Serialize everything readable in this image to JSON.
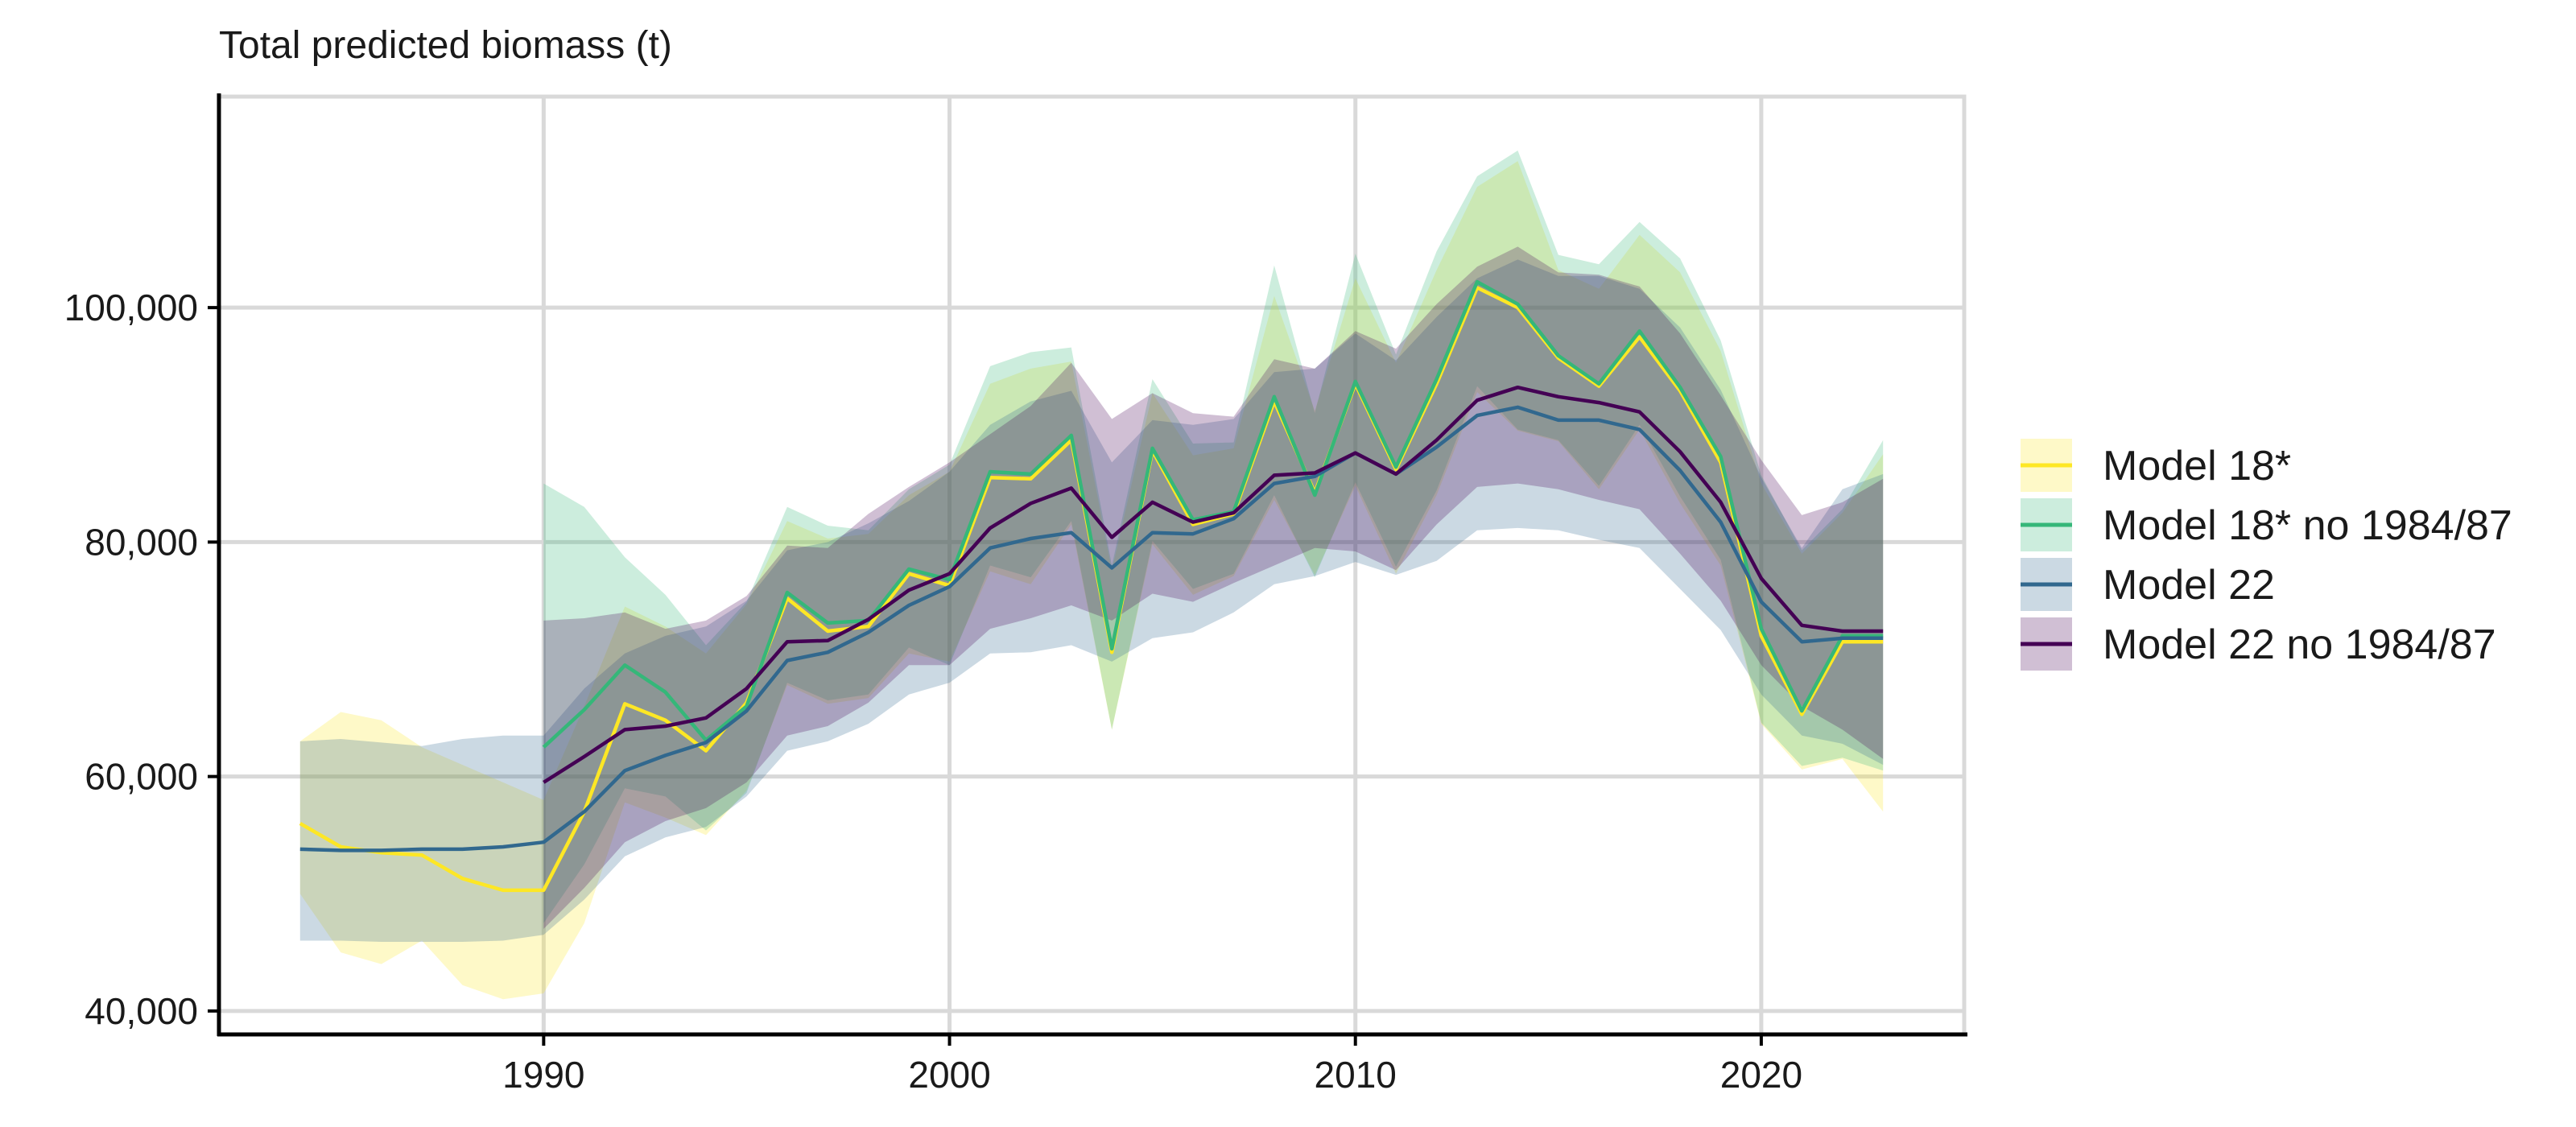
{
  "chart_data": {
    "type": "line",
    "title": "",
    "ylabel": "Total predicted biomass (t)",
    "xlabel": "",
    "xlim": [
      1982,
      2025
    ],
    "ylim": [
      38000,
      118000
    ],
    "x_ticks": [
      1990,
      2000,
      2010,
      2020
    ],
    "x_tick_labels": [
      "1990",
      "2000",
      "2010",
      "2020"
    ],
    "y_ticks": [
      40000,
      60000,
      80000,
      100000
    ],
    "y_tick_labels": [
      "40,000",
      "60,000",
      "80,000",
      "100,000"
    ],
    "grid": true,
    "legend_position": "right",
    "series": [
      {
        "name": "Model 18*",
        "color": "#fde725",
        "x": [
          1984,
          1985,
          1986,
          1987,
          1988,
          1989,
          1990,
          1991,
          1992,
          1993,
          1994,
          1995,
          1996,
          1997,
          1998,
          1999,
          2000,
          2001,
          2002,
          2003,
          2004,
          2005,
          2006,
          2007,
          2008,
          2009,
          2010,
          2011,
          2012,
          2013,
          2014,
          2015,
          2016,
          2017,
          2018,
          2019,
          2020,
          2021,
          2022,
          2023
        ],
        "values": [
          56000,
          54000,
          53500,
          53300,
          51300,
          50300,
          50300,
          57000,
          66200,
          64800,
          62200,
          66300,
          75200,
          72400,
          72800,
          77300,
          76300,
          85500,
          85400,
          88700,
          70600,
          87800,
          81500,
          82400,
          92000,
          84200,
          93500,
          86200,
          93500,
          101700,
          100000,
          95700,
          93300,
          97500,
          92900,
          86800,
          72000,
          65300,
          71500,
          71500
        ]
      },
      {
        "name": "Model 18* no 1984/87",
        "color": "#35b779",
        "x": [
          1990,
          1991,
          1992,
          1993,
          1994,
          1995,
          1996,
          1997,
          1998,
          1999,
          2000,
          2001,
          2002,
          2003,
          2004,
          2005,
          2006,
          2007,
          2008,
          2009,
          2010,
          2011,
          2012,
          2013,
          2014,
          2015,
          2016,
          2017,
          2018,
          2019,
          2020,
          2021,
          2022,
          2023
        ],
        "values": [
          62500,
          65700,
          69500,
          67200,
          63100,
          66000,
          75700,
          73100,
          73300,
          77700,
          76800,
          86000,
          85800,
          89100,
          70900,
          88000,
          81900,
          82600,
          92400,
          84000,
          93700,
          86400,
          93900,
          102200,
          100300,
          95900,
          93500,
          98000,
          93200,
          87300,
          72600,
          65600,
          72000,
          72000
        ]
      },
      {
        "name": "Model 22",
        "color": "#31688e",
        "x": [
          1984,
          1985,
          1986,
          1987,
          1988,
          1989,
          1990,
          1991,
          1992,
          1993,
          1994,
          1995,
          1996,
          1997,
          1998,
          1999,
          2000,
          2001,
          2002,
          2003,
          2004,
          2005,
          2006,
          2007,
          2008,
          2009,
          2010,
          2011,
          2012,
          2013,
          2014,
          2015,
          2016,
          2017,
          2018,
          2019,
          2020,
          2021,
          2022,
          2023
        ],
        "values": [
          53800,
          53700,
          53700,
          53800,
          53800,
          54000,
          54400,
          57000,
          60500,
          61800,
          62900,
          65600,
          69900,
          70600,
          72300,
          74600,
          76200,
          79500,
          80300,
          80800,
          77800,
          80800,
          80700,
          82000,
          85000,
          85600,
          87600,
          85800,
          88100,
          90800,
          91500,
          90400,
          90400,
          89600,
          86100,
          81700,
          74900,
          71500,
          71800,
          71800
        ]
      },
      {
        "name": "Model 22 no 1984/87",
        "color": "#440154",
        "x": [
          1990,
          1991,
          1992,
          1993,
          1994,
          1995,
          1996,
          1997,
          1998,
          1999,
          2000,
          2001,
          2002,
          2003,
          2004,
          2005,
          2006,
          2007,
          2008,
          2009,
          2010,
          2011,
          2012,
          2013,
          2014,
          2015,
          2016,
          2017,
          2018,
          2019,
          2020,
          2021,
          2022,
          2023
        ],
        "values": [
          59500,
          61700,
          64000,
          64300,
          65000,
          67500,
          71500,
          71600,
          73400,
          75900,
          77300,
          81200,
          83300,
          84600,
          80400,
          83400,
          81700,
          82500,
          85700,
          85900,
          87600,
          85800,
          88700,
          92100,
          93200,
          92400,
          91900,
          91100,
          87700,
          83400,
          76900,
          72900,
          72400,
          72400
        ]
      }
    ],
    "bands": [
      {
        "series": "Model 18*",
        "color": "#fde725",
        "x": [
          1984,
          1985,
          1986,
          1987,
          1988,
          1989,
          1990,
          1991,
          1992,
          1993,
          1994,
          1995,
          1996,
          1997,
          1998,
          1999,
          2000,
          2001,
          2002,
          2003,
          2004,
          2005,
          2006,
          2007,
          2008,
          2009,
          2010,
          2011,
          2012,
          2013,
          2014,
          2015,
          2016,
          2017,
          2018,
          2019,
          2020,
          2021,
          2022,
          2023
        ],
        "upper": [
          63000,
          65500,
          64800,
          62500,
          61000,
          59500,
          58000,
          66000,
          74500,
          72800,
          70500,
          74700,
          81800,
          80300,
          80700,
          84000,
          86000,
          93500,
          94800,
          95400,
          77600,
          92700,
          87400,
          88000,
          101000,
          91200,
          102500,
          95300,
          103200,
          110300,
          112500,
          103200,
          101600,
          106200,
          103000,
          96300,
          85000,
          79000,
          82500,
          87500
        ]
      },
      {
        "series": "Model 18*",
        "color": "#fde725",
        "x": [
          1984,
          1985,
          1986,
          1987,
          1988,
          1989,
          1990,
          1991,
          1992,
          1993,
          1994,
          1995,
          1996,
          1997,
          1998,
          1999,
          2000,
          2001,
          2002,
          2003,
          2004,
          2005,
          2006,
          2007,
          2008,
          2009,
          2010,
          2011,
          2012,
          2013,
          2014,
          2015,
          2016,
          2017,
          2018,
          2019,
          2020,
          2021,
          2022,
          2023
        ],
        "lower": [
          50000,
          45000,
          44000,
          46000,
          42200,
          41000,
          41500,
          47500,
          57800,
          56500,
          55000,
          58800,
          67800,
          66200,
          66700,
          70500,
          69800,
          77500,
          76400,
          81500,
          64000,
          79800,
          75500,
          77100,
          83600,
          77200,
          84800,
          77300,
          84000,
          92800,
          89500,
          88600,
          84500,
          89600,
          83300,
          78000,
          64500,
          60600,
          61500,
          57000
        ]
      },
      {
        "series": "Model 18* no 1984/87",
        "color": "#35b779",
        "x": [
          1990,
          1991,
          1992,
          1993,
          1994,
          1995,
          1996,
          1997,
          1998,
          1999,
          2000,
          2001,
          2002,
          2003,
          2004,
          2005,
          2006,
          2007,
          2008,
          2009,
          2010,
          2011,
          2012,
          2013,
          2014,
          2015,
          2016,
          2017,
          2018,
          2019,
          2020,
          2021,
          2022,
          2023
        ],
        "upper": [
          85000,
          83000,
          78700,
          75500,
          71200,
          74900,
          83000,
          81400,
          81000,
          84500,
          86600,
          95000,
          96200,
          96600,
          78000,
          93900,
          88400,
          88500,
          103600,
          91000,
          104600,
          96000,
          104800,
          111200,
          113400,
          104500,
          103700,
          107300,
          104200,
          97200,
          85700,
          79300,
          82800,
          88700
        ]
      },
      {
        "series": "Model 18* no 1984/87",
        "color": "#35b779",
        "x": [
          1990,
          1991,
          1992,
          1993,
          1994,
          1995,
          1996,
          1997,
          1998,
          1999,
          2000,
          2001,
          2002,
          2003,
          2004,
          2005,
          2006,
          2007,
          2008,
          2009,
          2010,
          2011,
          2012,
          2013,
          2014,
          2015,
          2016,
          2017,
          2018,
          2019,
          2020,
          2021,
          2022,
          2023
        ],
        "lower": [
          47500,
          52500,
          59000,
          58300,
          55400,
          58600,
          68000,
          66500,
          67000,
          71000,
          69500,
          78000,
          77000,
          81800,
          64000,
          80100,
          76000,
          77300,
          84000,
          77000,
          85100,
          77900,
          84400,
          93300,
          89600,
          88700,
          84800,
          90000,
          83900,
          78500,
          64600,
          60900,
          61600,
          60500
        ]
      },
      {
        "series": "Model 22",
        "color": "#31688e",
        "x": [
          1984,
          1985,
          1986,
          1987,
          1988,
          1989,
          1990,
          1991,
          1992,
          1993,
          1994,
          1995,
          1996,
          1997,
          1998,
          1999,
          2000,
          2001,
          2002,
          2003,
          2004,
          2005,
          2006,
          2007,
          2008,
          2009,
          2010,
          2011,
          2012,
          2013,
          2014,
          2015,
          2016,
          2017,
          2018,
          2019,
          2020,
          2021,
          2022,
          2023
        ],
        "upper": [
          63000,
          63200,
          62900,
          62600,
          63200,
          63500,
          63500,
          67500,
          70500,
          72000,
          72800,
          75000,
          79300,
          80000,
          81600,
          83500,
          86000,
          90000,
          92000,
          92900,
          86800,
          90400,
          90000,
          90500,
          94500,
          94800,
          97800,
          95500,
          99200,
          102500,
          104100,
          102700,
          102700,
          101600,
          98300,
          93000,
          85500,
          79500,
          84500,
          85800
        ]
      },
      {
        "series": "Model 22",
        "color": "#31688e",
        "x": [
          1984,
          1985,
          1986,
          1987,
          1988,
          1989,
          1990,
          1991,
          1992,
          1993,
          1994,
          1995,
          1996,
          1997,
          1998,
          1999,
          2000,
          2001,
          2002,
          2003,
          2004,
          2005,
          2006,
          2007,
          2008,
          2009,
          2010,
          2011,
          2012,
          2013,
          2014,
          2015,
          2016,
          2017,
          2018,
          2019,
          2020,
          2021,
          2022,
          2023
        ],
        "lower": [
          46000,
          46000,
          45900,
          45900,
          45900,
          46000,
          46500,
          49500,
          53200,
          54800,
          55700,
          58300,
          62200,
          63000,
          64500,
          67000,
          68000,
          70500,
          70600,
          71200,
          69800,
          71800,
          72300,
          74000,
          76400,
          77100,
          78300,
          77200,
          78400,
          81000,
          81200,
          81000,
          80200,
          79500,
          76000,
          72500,
          67000,
          63500,
          62800,
          61000
        ]
      },
      {
        "series": "Model 22 no 1984/87",
        "color": "#440154",
        "x": [
          1990,
          1991,
          1992,
          1993,
          1994,
          1995,
          1996,
          1997,
          1998,
          1999,
          2000,
          2001,
          2002,
          2003,
          2004,
          2005,
          2006,
          2007,
          2008,
          2009,
          2010,
          2011,
          2012,
          2013,
          2014,
          2015,
          2016,
          2017,
          2018,
          2019,
          2020,
          2021,
          2022,
          2023
        ],
        "upper": [
          73300,
          73500,
          74000,
          72600,
          73300,
          75400,
          79700,
          79500,
          82400,
          84700,
          86800,
          89200,
          91600,
          95300,
          90500,
          92700,
          91000,
          90700,
          95600,
          94800,
          98000,
          96500,
          100300,
          103500,
          105200,
          103000,
          102800,
          101800,
          97800,
          92500,
          87000,
          82300,
          83400,
          85400
        ]
      },
      {
        "series": "Model 22 no 1984/87",
        "color": "#440154",
        "x": [
          1990,
          1991,
          1992,
          1993,
          1994,
          1995,
          1996,
          1997,
          1998,
          1999,
          2000,
          2001,
          2002,
          2003,
          2004,
          2005,
          2006,
          2007,
          2008,
          2009,
          2010,
          2011,
          2012,
          2013,
          2014,
          2015,
          2016,
          2017,
          2018,
          2019,
          2020,
          2021,
          2022,
          2023
        ],
        "lower": [
          47000,
          50500,
          54400,
          56200,
          57300,
          59500,
          63500,
          64300,
          66300,
          69500,
          69500,
          72600,
          73500,
          74600,
          73300,
          75600,
          74900,
          76500,
          78000,
          79500,
          79200,
          77600,
          81500,
          84700,
          85000,
          84500,
          83600,
          82800,
          79000,
          75000,
          69500,
          66000,
          64000,
          61500
        ]
      }
    ]
  }
}
